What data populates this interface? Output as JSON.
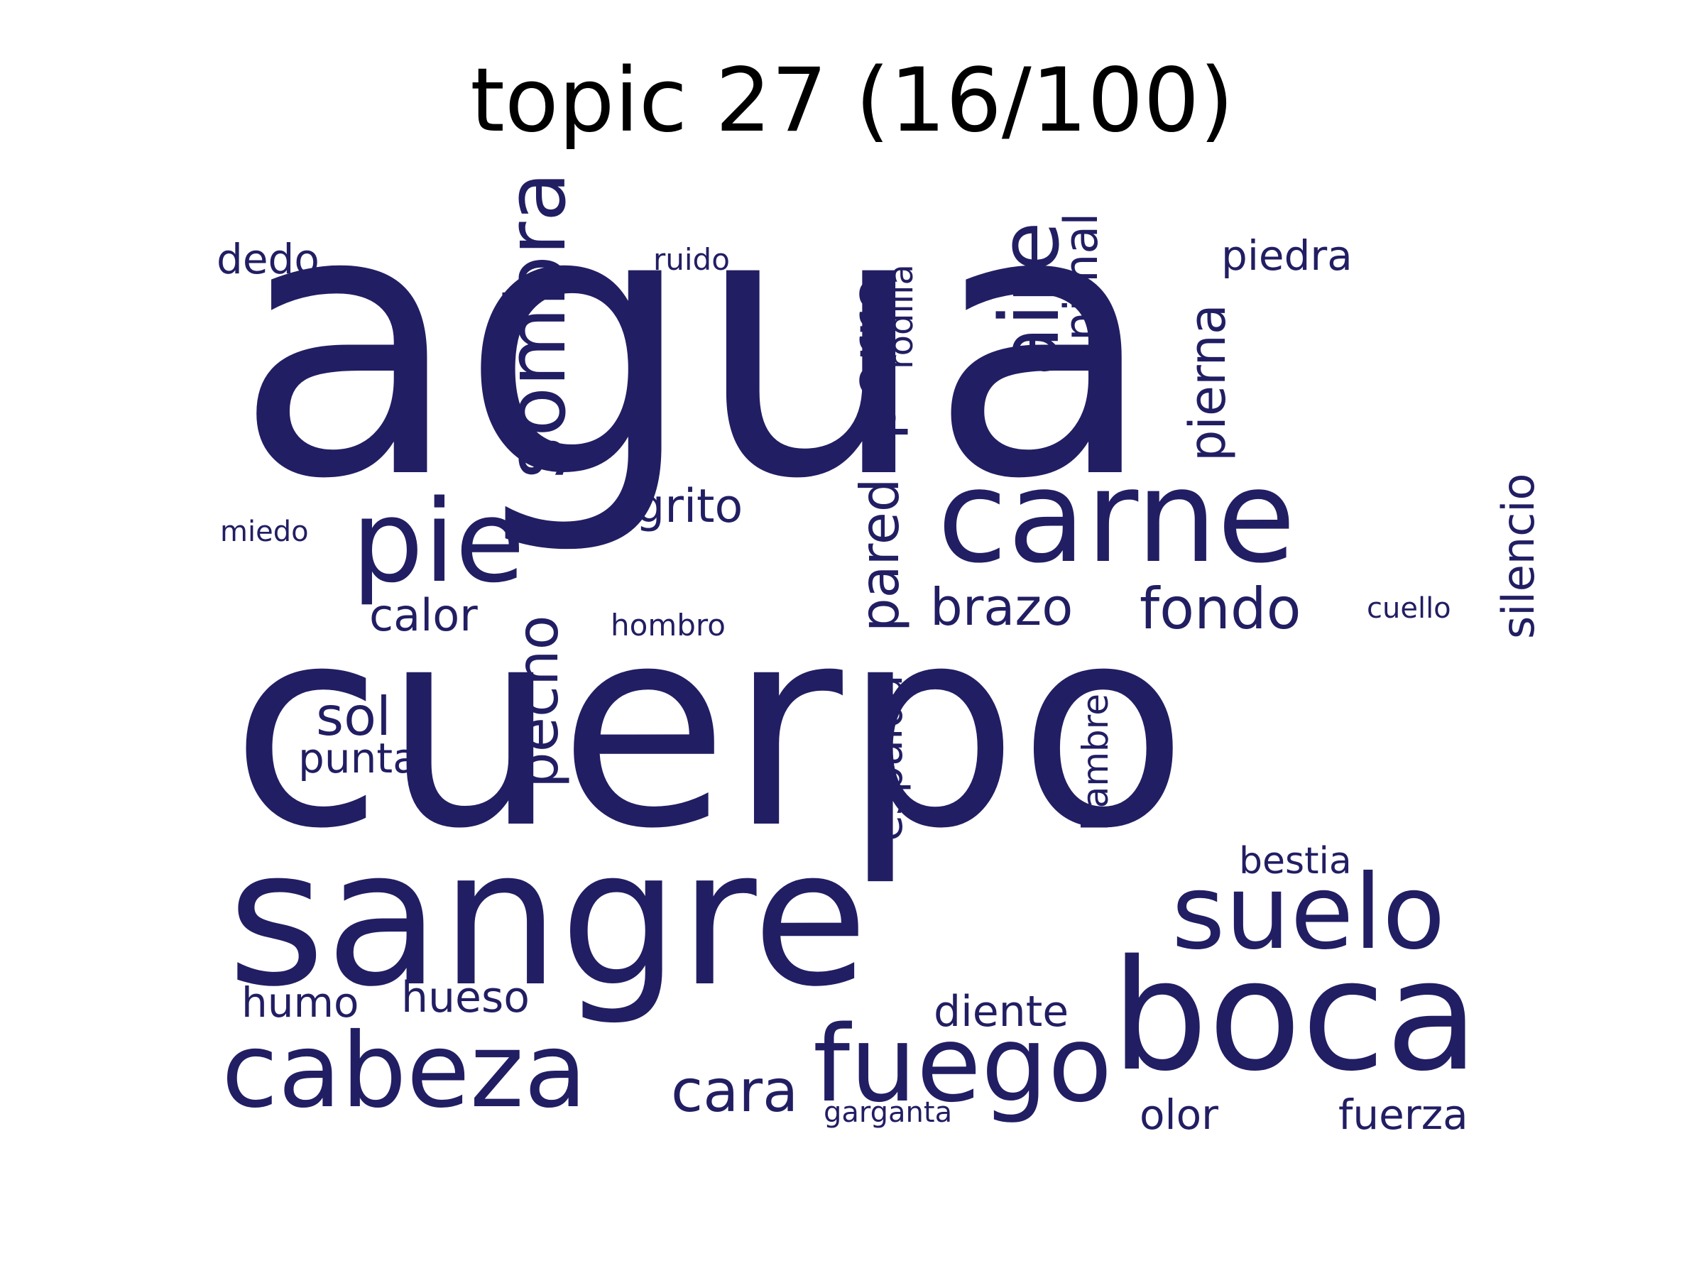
{
  "title": "topic 27 (16/100)",
  "word_color": "#221e63",
  "background_color": "#ffffff",
  "words": [
    {
      "key": "agua",
      "text": "agua"
    },
    {
      "key": "cuerpo",
      "text": "cuerpo"
    },
    {
      "key": "sangre",
      "text": "sangre"
    },
    {
      "key": "carne",
      "text": "carne"
    },
    {
      "key": "boca",
      "text": "boca"
    },
    {
      "key": "cabeza",
      "text": "cabeza"
    },
    {
      "key": "pie",
      "text": "pie"
    },
    {
      "key": "sombra",
      "text": "sombra"
    },
    {
      "key": "suelo",
      "text": "suelo"
    },
    {
      "key": "fuego",
      "text": "fuego"
    },
    {
      "key": "aire",
      "text": "aire"
    },
    {
      "key": "perro",
      "text": "perro"
    },
    {
      "key": "pecho",
      "text": "pecho"
    },
    {
      "key": "fondo",
      "text": "fondo"
    },
    {
      "key": "pared",
      "text": "pared"
    },
    {
      "key": "brazo",
      "text": "brazo"
    },
    {
      "key": "cara",
      "text": "cara"
    },
    {
      "key": "pierna",
      "text": "pierna"
    },
    {
      "key": "animal",
      "text": "animal"
    },
    {
      "key": "grito",
      "text": "grito"
    },
    {
      "key": "sol",
      "text": "sol"
    },
    {
      "key": "silencio",
      "text": "silencio"
    },
    {
      "key": "espalda",
      "text": "espalda"
    },
    {
      "key": "calor",
      "text": "calor"
    },
    {
      "key": "diente",
      "text": "diente"
    },
    {
      "key": "hueso",
      "text": "hueso"
    },
    {
      "key": "humo",
      "text": "humo"
    },
    {
      "key": "dedo",
      "text": "dedo"
    },
    {
      "key": "piedra",
      "text": "piedra"
    },
    {
      "key": "punta",
      "text": "punta"
    },
    {
      "key": "fuerza",
      "text": "fuerza"
    },
    {
      "key": "olor",
      "text": "olor"
    },
    {
      "key": "bestia",
      "text": "bestia"
    },
    {
      "key": "rodilla",
      "text": "rodilla"
    },
    {
      "key": "hambre",
      "text": "hambre"
    },
    {
      "key": "ruido",
      "text": "ruido"
    },
    {
      "key": "hombro",
      "text": "hombro"
    },
    {
      "key": "miedo",
      "text": "miedo"
    },
    {
      "key": "cuello",
      "text": "cuello"
    },
    {
      "key": "garganta",
      "text": "garganta"
    }
  ]
}
